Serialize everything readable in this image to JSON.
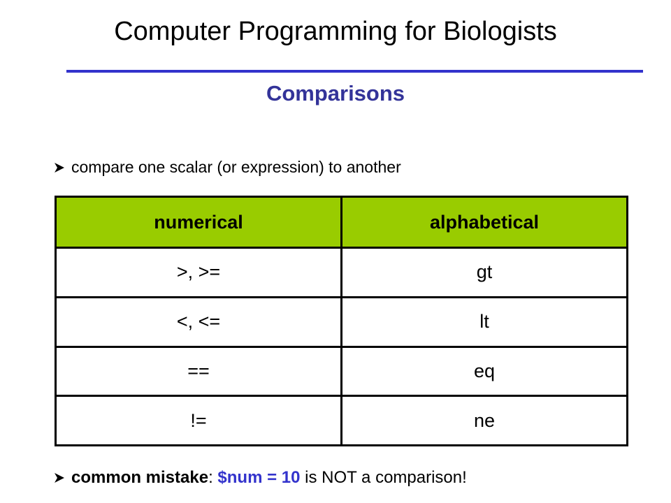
{
  "header": {
    "title": "Computer Programming for Biologists",
    "subtitle": "Comparisons"
  },
  "bullets": [
    {
      "parts": [
        {
          "text": "compare one scalar (or expression) to another",
          "style": "plain"
        }
      ]
    },
    {
      "parts": [
        {
          "text": "common mistake",
          "style": "bold"
        },
        {
          "text": ": ",
          "style": "plain"
        },
        {
          "text": "$num = 10",
          "style": "bold-blue"
        },
        {
          "text": " is NOT a comparison!",
          "style": "plain"
        }
      ]
    }
  ],
  "table": {
    "header": [
      "numerical",
      "alphabetical"
    ],
    "rows": [
      [
        ">, >=",
        "gt"
      ],
      [
        "<, <=",
        "lt"
      ],
      [
        "==",
        "eq"
      ],
      [
        "!=",
        "ne"
      ]
    ]
  }
}
